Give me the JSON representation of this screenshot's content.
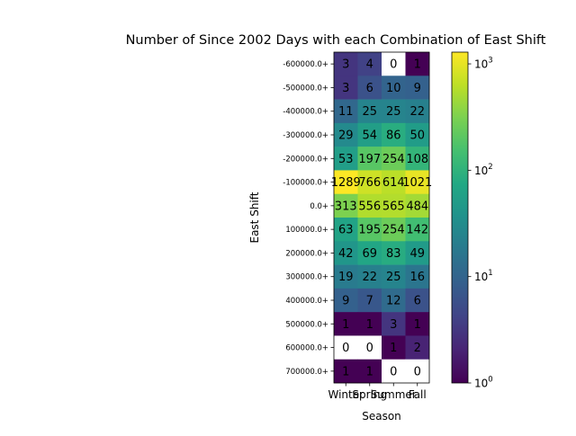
{
  "chart_data": {
    "type": "heatmap",
    "title": "Number of Since 2002 Days with each Combination of East Shift",
    "xlabel": "Season",
    "ylabel": "East Shift",
    "x_categories": [
      "Winter",
      "Spring",
      "Summer",
      "Fall"
    ],
    "y_categories": [
      "-600000.0+",
      "-500000.0+",
      "-400000.0+",
      "-300000.0+",
      "-200000.0+",
      "-100000.0+",
      "0.0+",
      "100000.0+",
      "200000.0+",
      "300000.0+",
      "400000.0+",
      "500000.0+",
      "600000.0+",
      "700000.0+"
    ],
    "values": [
      [
        3,
        4,
        0,
        1
      ],
      [
        3,
        6,
        10,
        9
      ],
      [
        11,
        25,
        25,
        22
      ],
      [
        29,
        54,
        86,
        50
      ],
      [
        53,
        197,
        254,
        108
      ],
      [
        1289,
        766,
        614,
        1021
      ],
      [
        313,
        556,
        565,
        484
      ],
      [
        63,
        195,
        254,
        142
      ],
      [
        42,
        69,
        83,
        49
      ],
      [
        19,
        22,
        25,
        16
      ],
      [
        9,
        7,
        12,
        6
      ],
      [
        1,
        1,
        3,
        1
      ],
      [
        0,
        0,
        1,
        2
      ],
      [
        1,
        1,
        0,
        0
      ]
    ],
    "colorscale": "viridis",
    "color_scale_type": "log",
    "color_range": [
      1,
      1289
    ],
    "colorbar_ticks": [
      {
        "value": 1,
        "base": "10",
        "exp": "0"
      },
      {
        "value": 10,
        "base": "10",
        "exp": "1"
      },
      {
        "value": 100,
        "base": "10",
        "exp": "2"
      },
      {
        "value": 1000,
        "base": "10",
        "exp": "3"
      }
    ],
    "zero_color": "#ffffff",
    "grid": false
  }
}
